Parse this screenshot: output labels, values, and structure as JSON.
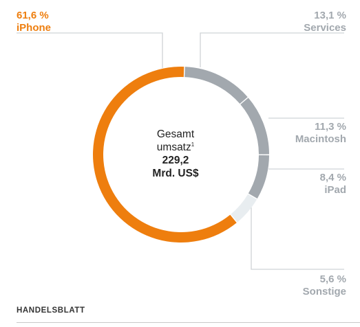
{
  "chart_data": {
    "type": "donut",
    "slices": [
      {
        "name": "iPhone",
        "pct_label": "61,6 %",
        "value": 61.6,
        "color": "#ee7e0e"
      },
      {
        "name": "Services",
        "pct_label": "13,1 %",
        "value": 13.1,
        "color": "#a2a8ae"
      },
      {
        "name": "Macintosh",
        "pct_label": "11,3 %",
        "value": 11.3,
        "color": "#a2a8ae"
      },
      {
        "name": "iPad",
        "pct_label": "8,4 %",
        "value": 8.4,
        "color": "#a2a8ae"
      },
      {
        "name": "Sonstige",
        "pct_label": "5,6 %",
        "value": 5.6,
        "color": "#e8edf0"
      }
    ],
    "center": {
      "line1": "Gesamt",
      "line2": "umsatz",
      "footnote": "1",
      "value": "229,2",
      "unit": "Mrd. US$"
    }
  },
  "source": "HANDELSBLATT",
  "colors": {
    "accent": "#ee7e0e",
    "gray": "#a2a8ae",
    "light": "#e8edf0",
    "leader": "#cfd3d6"
  }
}
